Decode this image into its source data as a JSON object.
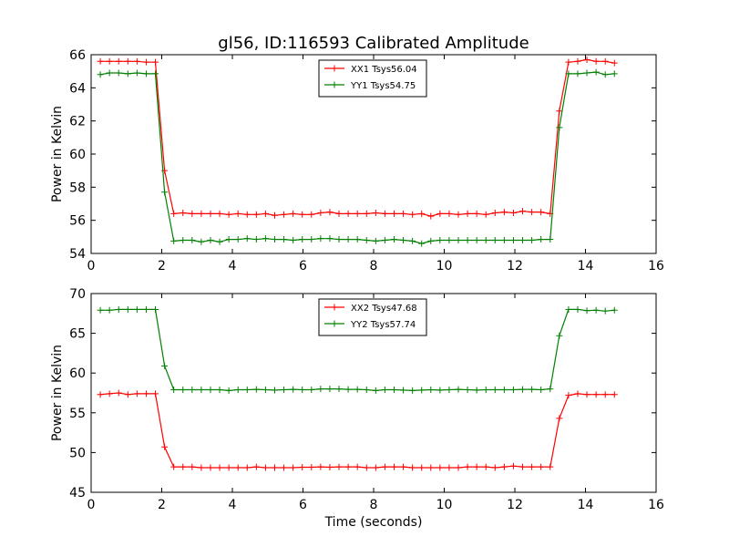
{
  "figure": {
    "title": "gl56, ID:116593 Calibrated Amplitude",
    "xlabel": "Time (seconds)"
  },
  "chart_data": [
    {
      "type": "line",
      "title": "gl56, ID:116593 Calibrated Amplitude",
      "xlabel": "",
      "ylabel": "Power in Kelvin",
      "xlim": [
        0,
        16
      ],
      "ylim": [
        54,
        66
      ],
      "xticks": [
        0,
        2,
        4,
        6,
        8,
        10,
        12,
        14,
        16
      ],
      "yticks": [
        54,
        56,
        58,
        60,
        62,
        64,
        66
      ],
      "legend": "top-center",
      "grid": false,
      "x": [
        0.26,
        0.52,
        0.78,
        1.04,
        1.3,
        1.56,
        1.82,
        2.08,
        2.34,
        2.6,
        2.86,
        3.12,
        3.38,
        3.64,
        3.9,
        4.16,
        4.42,
        4.68,
        4.94,
        5.2,
        5.46,
        5.72,
        5.98,
        6.24,
        6.5,
        6.76,
        7.02,
        7.28,
        7.54,
        7.8,
        8.06,
        8.32,
        8.58,
        8.84,
        9.1,
        9.36,
        9.62,
        9.88,
        10.14,
        10.4,
        10.66,
        10.92,
        11.18,
        11.44,
        11.7,
        11.96,
        12.22,
        12.48,
        12.74,
        13.0,
        13.26,
        13.52,
        13.78,
        14.04,
        14.3,
        14.56,
        14.82
      ],
      "series": [
        {
          "name": "XX1 Tsys56.04",
          "color": "#ff0000",
          "values": [
            65.6,
            65.6,
            65.6,
            65.6,
            65.6,
            65.55,
            65.55,
            59.0,
            56.4,
            56.45,
            56.4,
            56.4,
            56.4,
            56.4,
            56.35,
            56.4,
            56.35,
            56.35,
            56.4,
            56.3,
            56.35,
            56.4,
            56.35,
            56.35,
            56.45,
            56.5,
            56.4,
            56.4,
            56.4,
            56.4,
            56.45,
            56.4,
            56.4,
            56.4,
            56.35,
            56.4,
            56.25,
            56.4,
            56.4,
            56.35,
            56.4,
            56.4,
            56.35,
            56.45,
            56.5,
            56.45,
            56.55,
            56.5,
            56.5,
            56.4,
            62.6,
            65.55,
            65.6,
            65.7,
            65.6,
            65.6,
            65.5
          ]
        },
        {
          "name": "YY1 Tsys54.75",
          "color": "#008000",
          "values": [
            64.8,
            64.9,
            64.9,
            64.85,
            64.9,
            64.85,
            64.85,
            57.7,
            54.75,
            54.8,
            54.8,
            54.7,
            54.8,
            54.7,
            54.85,
            54.85,
            54.9,
            54.85,
            54.9,
            54.85,
            54.85,
            54.8,
            54.85,
            54.85,
            54.9,
            54.9,
            54.85,
            54.85,
            54.85,
            54.8,
            54.75,
            54.8,
            54.85,
            54.8,
            54.75,
            54.6,
            54.75,
            54.8,
            54.8,
            54.8,
            54.8,
            54.8,
            54.8,
            54.8,
            54.8,
            54.8,
            54.8,
            54.8,
            54.85,
            54.85,
            61.6,
            64.85,
            64.85,
            64.9,
            64.95,
            64.8,
            64.85
          ]
        }
      ]
    },
    {
      "type": "line",
      "title": "",
      "xlabel": "Time (seconds)",
      "ylabel": "Power in Kelvin",
      "xlim": [
        0,
        16
      ],
      "ylim": [
        45,
        70
      ],
      "xticks": [
        0,
        2,
        4,
        6,
        8,
        10,
        12,
        14,
        16
      ],
      "yticks": [
        45,
        50,
        55,
        60,
        65,
        70
      ],
      "legend": "top-center",
      "grid": false,
      "x": [
        0.26,
        0.52,
        0.78,
        1.04,
        1.3,
        1.56,
        1.82,
        2.08,
        2.34,
        2.6,
        2.86,
        3.12,
        3.38,
        3.64,
        3.9,
        4.16,
        4.42,
        4.68,
        4.94,
        5.2,
        5.46,
        5.72,
        5.98,
        6.24,
        6.5,
        6.76,
        7.02,
        7.28,
        7.54,
        7.8,
        8.06,
        8.32,
        8.58,
        8.84,
        9.1,
        9.36,
        9.62,
        9.88,
        10.14,
        10.4,
        10.66,
        10.92,
        11.18,
        11.44,
        11.7,
        11.96,
        12.22,
        12.48,
        12.74,
        13.0,
        13.26,
        13.52,
        13.78,
        14.04,
        14.3,
        14.56,
        14.82
      ],
      "series": [
        {
          "name": "XX2 Tsys47.68",
          "color": "#ff0000",
          "values": [
            57.3,
            57.4,
            57.5,
            57.3,
            57.4,
            57.4,
            57.4,
            50.7,
            48.2,
            48.2,
            48.2,
            48.1,
            48.1,
            48.1,
            48.1,
            48.1,
            48.1,
            48.2,
            48.1,
            48.1,
            48.1,
            48.1,
            48.15,
            48.15,
            48.2,
            48.15,
            48.2,
            48.2,
            48.2,
            48.1,
            48.1,
            48.2,
            48.2,
            48.2,
            48.1,
            48.1,
            48.1,
            48.1,
            48.1,
            48.1,
            48.2,
            48.2,
            48.2,
            48.1,
            48.2,
            48.3,
            48.2,
            48.2,
            48.2,
            48.2,
            54.3,
            57.2,
            57.4,
            57.3,
            57.3,
            57.3,
            57.3
          ]
        },
        {
          "name": "YY2 Tsys57.74",
          "color": "#008000",
          "values": [
            67.9,
            67.9,
            68.0,
            68.0,
            68.0,
            68.0,
            68.0,
            60.9,
            57.9,
            57.9,
            57.9,
            57.9,
            57.9,
            57.9,
            57.8,
            57.9,
            57.9,
            57.95,
            57.9,
            57.85,
            57.9,
            57.95,
            57.9,
            57.9,
            58.0,
            58.0,
            58.0,
            57.95,
            57.95,
            57.9,
            57.8,
            57.9,
            57.9,
            57.85,
            57.8,
            57.85,
            57.9,
            57.85,
            57.9,
            57.95,
            57.9,
            57.85,
            57.9,
            57.9,
            57.9,
            57.9,
            57.95,
            57.95,
            57.9,
            58.0,
            64.7,
            68.0,
            68.0,
            67.85,
            67.9,
            67.8,
            67.9
          ]
        }
      ]
    }
  ]
}
